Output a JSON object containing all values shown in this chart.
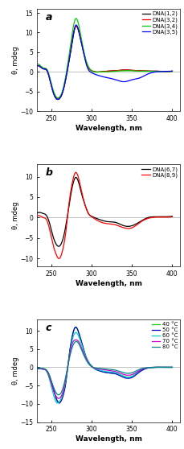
{
  "panel_a": {
    "label": "a",
    "xlim": [
      232,
      410
    ],
    "ylim": [
      -10,
      16
    ],
    "yticks": [
      -10,
      -5,
      0,
      5,
      10,
      15
    ],
    "ylabel": "θ, mdeg",
    "xlabel": "Wavelength, nm",
    "legend": [
      "DNA(1,2)",
      "DNA(3,2)",
      "DNA(3,4)",
      "DNA(3,5)"
    ],
    "colors": [
      "#000000",
      "#ff0000",
      "#00cc00",
      "#0000ff"
    ],
    "series": {
      "DNA(1,2)": {
        "x": [
          232,
          237,
          240,
          245,
          250,
          255,
          260,
          265,
          270,
          275,
          280,
          285,
          290,
          295,
          300,
          310,
          320,
          330,
          340,
          350,
          360,
          370,
          380,
          390,
          400
        ],
        "y": [
          1.5,
          1.2,
          0.8,
          0.2,
          -3.5,
          -6.5,
          -6.8,
          -4.5,
          0.5,
          6.5,
          11.5,
          9.5,
          5.0,
          1.5,
          0.3,
          0.0,
          0.2,
          0.3,
          0.5,
          0.4,
          0.3,
          0.2,
          0.2,
          0.1,
          0.2
        ]
      },
      "DNA(3,2)": {
        "x": [
          232,
          237,
          240,
          245,
          250,
          255,
          260,
          265,
          270,
          275,
          280,
          285,
          290,
          295,
          300,
          310,
          320,
          330,
          340,
          350,
          360,
          370,
          380,
          390,
          400
        ],
        "y": [
          1.5,
          1.2,
          0.8,
          0.2,
          -3.3,
          -6.3,
          -6.5,
          -4.3,
          0.8,
          7.0,
          11.5,
          9.8,
          5.2,
          1.5,
          0.3,
          0.0,
          0.2,
          0.3,
          0.5,
          0.4,
          0.3,
          0.2,
          0.2,
          0.1,
          0.2
        ]
      },
      "DNA(3,4)": {
        "x": [
          232,
          237,
          240,
          245,
          250,
          255,
          260,
          265,
          270,
          275,
          280,
          285,
          290,
          295,
          300,
          310,
          320,
          330,
          340,
          350,
          360,
          370,
          380,
          390,
          400
        ],
        "y": [
          1.8,
          1.5,
          1.0,
          0.5,
          -3.0,
          -6.0,
          -6.5,
          -4.0,
          1.5,
          8.5,
          13.5,
          11.0,
          5.5,
          1.8,
          0.3,
          0.0,
          0.0,
          0.2,
          0.3,
          0.3,
          0.2,
          0.2,
          0.1,
          0.1,
          0.1
        ]
      },
      "DNA(3,5)": {
        "x": [
          232,
          237,
          240,
          245,
          250,
          255,
          260,
          265,
          270,
          275,
          280,
          285,
          290,
          295,
          300,
          310,
          320,
          330,
          340,
          350,
          360,
          370,
          380,
          390,
          400
        ],
        "y": [
          1.5,
          1.2,
          0.8,
          0.2,
          -3.5,
          -6.5,
          -6.8,
          -4.5,
          0.5,
          6.5,
          11.8,
          9.5,
          4.8,
          1.0,
          -0.2,
          -1.0,
          -1.5,
          -2.0,
          -2.5,
          -2.0,
          -1.5,
          -0.5,
          0.0,
          0.1,
          0.2
        ]
      }
    }
  },
  "panel_b": {
    "label": "b",
    "xlim": [
      232,
      410
    ],
    "ylim": [
      -12,
      13
    ],
    "yticks": [
      -10,
      -5,
      0,
      5,
      10
    ],
    "ylabel": "θ, mdeg",
    "xlabel": "Wavelength, nm",
    "legend": [
      "DNA(6,7)",
      "DNA(8,9)"
    ],
    "colors": [
      "#000000",
      "#ff0000"
    ],
    "series": {
      "DNA(6,7)": {
        "x": [
          232,
          237,
          240,
          244,
          248,
          252,
          256,
          260,
          264,
          268,
          272,
          276,
          280,
          284,
          288,
          292,
          296,
          300,
          310,
          320,
          330,
          340,
          350,
          360,
          370,
          380,
          390,
          400
        ],
        "y": [
          1.0,
          1.2,
          1.0,
          0.5,
          -1.5,
          -4.5,
          -6.5,
          -7.0,
          -5.5,
          -2.0,
          3.0,
          7.5,
          9.8,
          8.5,
          5.5,
          3.0,
          1.0,
          0.3,
          -0.5,
          -1.0,
          -1.2,
          -2.0,
          -2.0,
          -1.0,
          0.0,
          0.2,
          0.2,
          0.3
        ]
      },
      "DNA(8,9)": {
        "x": [
          232,
          237,
          240,
          244,
          248,
          252,
          256,
          260,
          264,
          268,
          272,
          276,
          280,
          284,
          288,
          292,
          296,
          300,
          310,
          320,
          330,
          340,
          350,
          360,
          370,
          380,
          390,
          400
        ],
        "y": [
          0.3,
          0.3,
          0.0,
          -0.5,
          -3.0,
          -6.5,
          -9.0,
          -10.0,
          -8.0,
          -3.5,
          3.5,
          8.5,
          11.0,
          9.5,
          6.0,
          3.0,
          1.0,
          0.2,
          -1.0,
          -1.5,
          -1.8,
          -2.5,
          -2.5,
          -1.2,
          -0.2,
          0.1,
          0.1,
          0.2
        ]
      }
    }
  },
  "panel_c": {
    "label": "c",
    "xlim": [
      232,
      410
    ],
    "ylim": [
      -15,
      13
    ],
    "yticks": [
      -15,
      -10,
      -5,
      0,
      5,
      10
    ],
    "ylabel": "θ, mdeg",
    "xlabel": "Wavelength, nm",
    "legend": [
      "40 °C",
      "50 °C",
      "60 °C",
      "70 °C",
      "80 °C"
    ],
    "colors": [
      "#00cc00",
      "#0000cc",
      "#00cccc",
      "#cc00cc",
      "#008888"
    ],
    "series": {
      "40C": {
        "x": [
          232,
          236,
          240,
          244,
          248,
          252,
          256,
          260,
          264,
          268,
          272,
          276,
          280,
          284,
          288,
          292,
          296,
          300,
          310,
          320,
          330,
          340,
          350,
          360,
          370,
          380,
          390,
          400
        ],
        "y": [
          -0.3,
          -0.4,
          -0.5,
          -0.8,
          -2.5,
          -5.5,
          -8.5,
          -9.5,
          -8.0,
          -4.0,
          3.0,
          8.5,
          11.0,
          9.5,
          6.5,
          3.5,
          1.5,
          0.3,
          -1.0,
          -1.5,
          -1.8,
          -2.5,
          -2.5,
          -1.0,
          -0.2,
          0.0,
          0.0,
          0.0
        ]
      },
      "50C": {
        "x": [
          232,
          236,
          240,
          244,
          248,
          252,
          256,
          260,
          264,
          268,
          272,
          276,
          280,
          284,
          288,
          292,
          296,
          300,
          310,
          320,
          330,
          340,
          350,
          360,
          370,
          380,
          390,
          400
        ],
        "y": [
          -0.3,
          -0.4,
          -0.5,
          -0.8,
          -2.5,
          -5.5,
          -8.5,
          -9.8,
          -8.2,
          -4.2,
          3.0,
          8.5,
          11.0,
          9.5,
          6.5,
          3.5,
          1.5,
          0.3,
          -1.0,
          -1.5,
          -1.8,
          -2.8,
          -2.8,
          -1.2,
          -0.2,
          0.0,
          0.0,
          0.0
        ]
      },
      "60C": {
        "x": [
          232,
          236,
          240,
          244,
          248,
          252,
          256,
          260,
          264,
          268,
          272,
          276,
          280,
          284,
          288,
          292,
          296,
          300,
          310,
          320,
          330,
          340,
          350,
          360,
          370,
          380,
          390,
          400
        ],
        "y": [
          -0.2,
          -0.3,
          -0.5,
          -1.0,
          -3.5,
          -7.0,
          -9.5,
          -9.5,
          -7.5,
          -3.5,
          2.5,
          7.5,
          9.5,
          8.5,
          6.0,
          3.5,
          1.5,
          0.3,
          -0.8,
          -1.2,
          -1.5,
          -2.5,
          -2.5,
          -0.8,
          -0.2,
          0.0,
          0.0,
          0.0
        ]
      },
      "70C": {
        "x": [
          232,
          236,
          240,
          244,
          248,
          252,
          256,
          260,
          264,
          268,
          272,
          276,
          280,
          284,
          288,
          292,
          296,
          300,
          310,
          320,
          330,
          340,
          350,
          360,
          370,
          380,
          390,
          400
        ],
        "y": [
          -0.2,
          -0.3,
          -0.5,
          -1.0,
          -3.0,
          -6.0,
          -8.0,
          -8.5,
          -7.0,
          -3.0,
          2.5,
          6.5,
          7.5,
          7.0,
          5.0,
          3.0,
          1.2,
          0.2,
          -0.5,
          -0.8,
          -1.2,
          -2.0,
          -2.0,
          -0.8,
          -0.1,
          0.0,
          0.0,
          0.0
        ]
      },
      "80C": {
        "x": [
          232,
          236,
          240,
          244,
          248,
          252,
          256,
          260,
          264,
          268,
          272,
          276,
          280,
          284,
          288,
          292,
          296,
          300,
          310,
          320,
          330,
          340,
          350,
          360,
          370,
          380,
          390,
          400
        ],
        "y": [
          -0.1,
          -0.2,
          -0.3,
          -0.8,
          -2.5,
          -5.0,
          -7.0,
          -7.5,
          -6.0,
          -2.5,
          2.0,
          5.5,
          7.0,
          6.5,
          4.5,
          2.5,
          1.0,
          0.2,
          -0.3,
          -0.5,
          -0.8,
          -1.5,
          -1.5,
          -0.5,
          -0.1,
          0.0,
          0.0,
          0.0
        ]
      }
    }
  },
  "bg_color": "#ffffff",
  "axis_bg_color": "#ffffff"
}
